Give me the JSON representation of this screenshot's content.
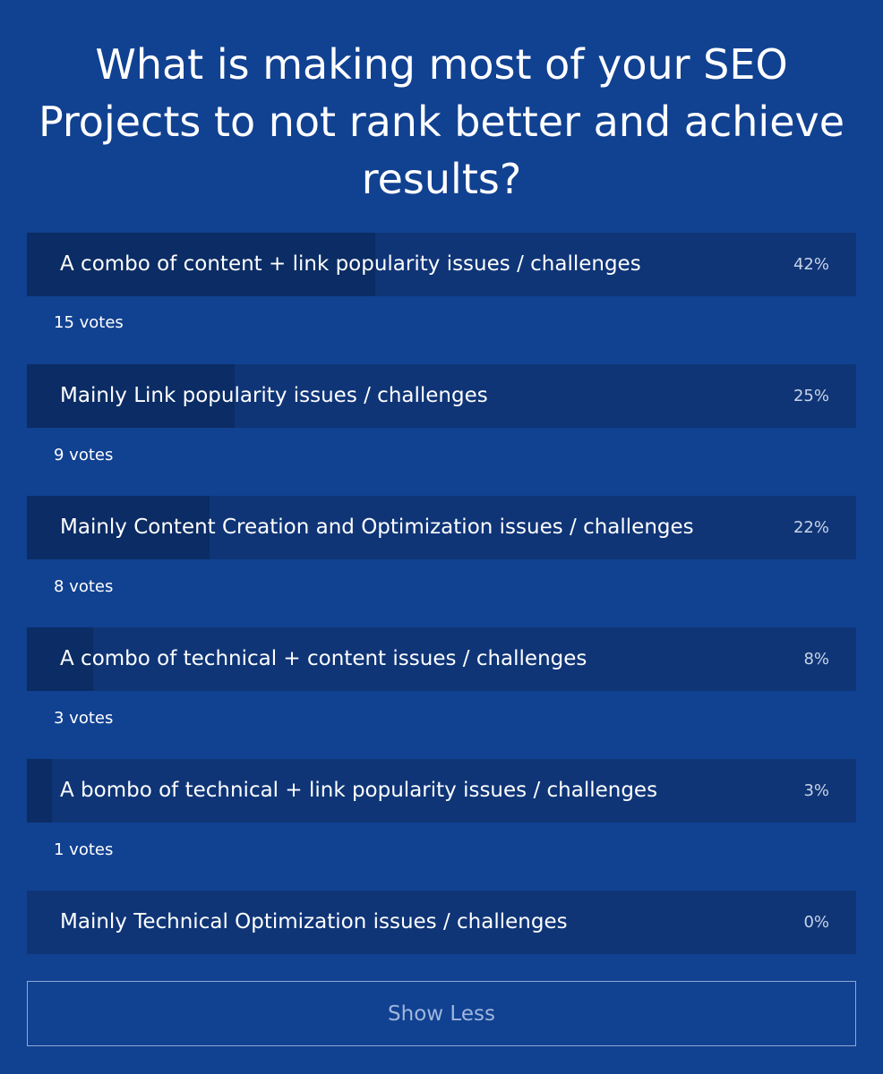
{
  "question": "What is making most of your SEO Projects to not rank better and achieve results?",
  "options": [
    {
      "label": "A combo of content + link popularity issues / challenges",
      "percent_text": "42%",
      "votes_text": "15 votes",
      "fraction": 0.42
    },
    {
      "label": "Mainly Link popularity issues / challenges",
      "percent_text": "25%",
      "votes_text": "9 votes",
      "fraction": 0.25
    },
    {
      "label": "Mainly Content Creation and Optimization issues / challenges",
      "percent_text": "22%",
      "votes_text": "8 votes",
      "fraction": 0.22
    },
    {
      "label": "A combo of technical + content issues / challenges",
      "percent_text": "8%",
      "votes_text": "3 votes",
      "fraction": 0.08
    },
    {
      "label": "A bombo of technical + link popularity issues / challenges",
      "percent_text": "3%",
      "votes_text": "1 votes",
      "fraction": 0.03
    },
    {
      "label": "Mainly Technical Optimization issues / challenges",
      "percent_text": "0%",
      "votes_text": "",
      "fraction": 0.0
    }
  ],
  "show_less_label": "Show Less",
  "colors": {
    "background": "#114191",
    "option_background": "#0f3577",
    "option_fill": "#0b2c64",
    "button_border": "#8fa9d4",
    "button_text": "#9fb6dd"
  }
}
